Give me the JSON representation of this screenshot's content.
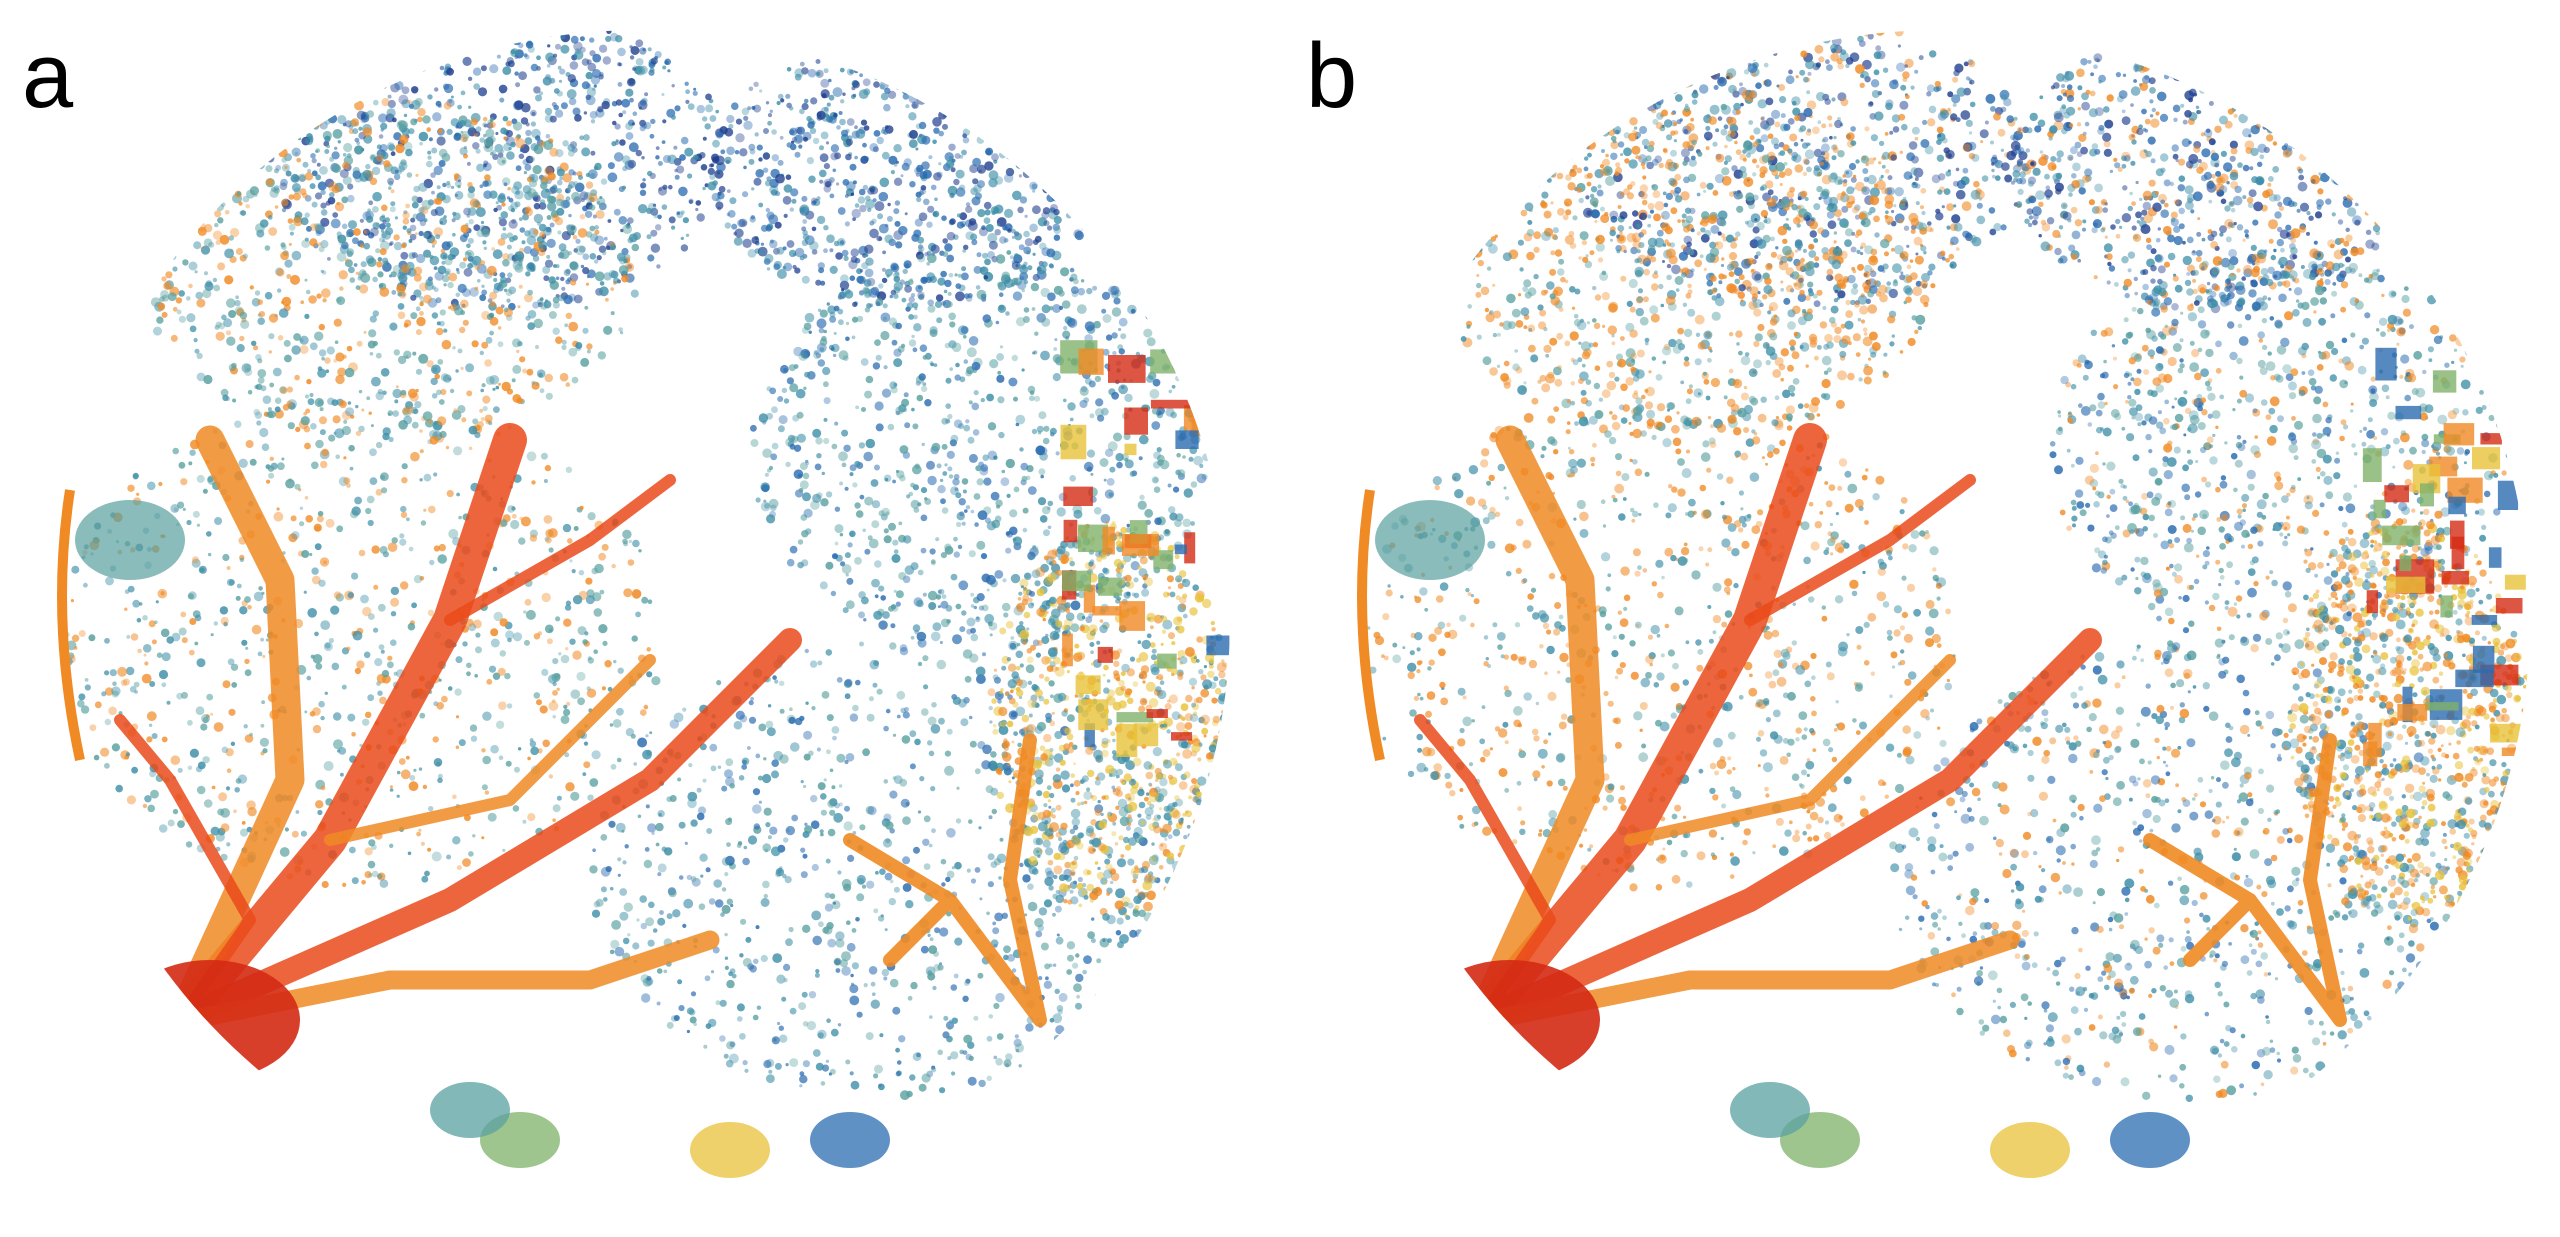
{
  "figure": {
    "panels": [
      {
        "label": "a"
      },
      {
        "label": "b"
      }
    ],
    "colors": {
      "background": "#ffffff",
      "deep_blue": "#1f3f8f",
      "blue": "#2b6cb0",
      "teal": "#3f8fa8",
      "blue_green": "#5aa0a0",
      "green": "#7fb26a",
      "yellow": "#e8c23a",
      "orange": "#f08a24",
      "red_orange": "#ea4a1a",
      "red": "#d42a14"
    }
  }
}
